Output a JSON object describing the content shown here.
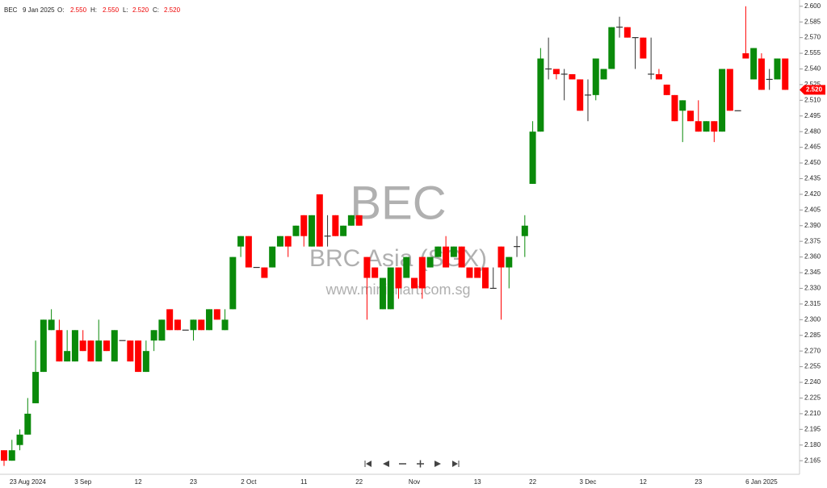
{
  "chart_data": {
    "type": "candlestick",
    "header": {
      "symbol": "BEC",
      "date": "9 Jan 2025",
      "o_label": "O:",
      "o": "2.550",
      "h_label": "H:",
      "h": "2.550",
      "l_label": "L:",
      "l": "2.520",
      "c_label": "C:",
      "c": "2.520"
    },
    "watermark": {
      "code": "BEC",
      "name": "BRC Asia (SGX)",
      "site": "www.minichart.com.sg"
    },
    "last_price": {
      "value": 2.52,
      "label": "2.520"
    },
    "up_color": "#0a8a0a",
    "down_color": "#ff0000",
    "categories": [
      null,
      null,
      null,
      "23 Aug 2024",
      null,
      null,
      null,
      null,
      null,
      null,
      "3 Sep",
      null,
      null,
      null,
      null,
      null,
      null,
      "12",
      null,
      null,
      null,
      null,
      null,
      null,
      "23",
      null,
      null,
      null,
      null,
      null,
      null,
      "2 Oct",
      null,
      null,
      null,
      null,
      null,
      null,
      "11",
      null,
      null,
      null,
      null,
      null,
      null,
      "22",
      null,
      null,
      null,
      null,
      null,
      null,
      "Nov",
      null,
      null,
      null,
      null,
      null,
      null,
      null,
      "13",
      null,
      null,
      null,
      null,
      null,
      null,
      "22",
      null,
      null,
      null,
      null,
      null,
      null,
      "3 Dec",
      null,
      null,
      null,
      null,
      null,
      null,
      "12",
      null,
      null,
      null,
      null,
      null,
      null,
      "23",
      null,
      null,
      null,
      null,
      null,
      null,
      null,
      "6 Jan 2025",
      null,
      null,
      null
    ],
    "open": [
      2.175,
      2.165,
      2.18,
      2.19,
      2.22,
      2.25,
      2.29,
      2.29,
      2.26,
      2.26,
      2.28,
      2.28,
      2.26,
      2.28,
      2.26,
      2.28,
      2.28,
      2.28,
      2.25,
      2.28,
      2.28,
      2.31,
      2.3,
      2.29,
      2.29,
      2.3,
      2.29,
      2.31,
      2.29,
      2.31,
      2.37,
      2.38,
      2.35,
      2.35,
      2.35,
      2.37,
      2.38,
      2.38,
      2.4,
      2.37,
      2.42,
      2.38,
      2.4,
      2.38,
      2.39,
      2.4,
      2.36,
      2.35,
      2.31,
      2.31,
      2.35,
      2.34,
      2.34,
      2.36,
      2.35,
      2.36,
      2.37,
      2.36,
      2.37,
      2.35,
      2.35,
      2.35,
      2.33,
      2.37,
      2.35,
      2.37,
      2.38,
      2.43,
      2.48,
      2.54,
      2.54,
      2.535,
      2.535,
      2.53,
      2.515,
      2.515,
      2.53,
      2.54,
      2.58,
      2.58,
      2.57,
      2.57,
      2.535,
      2.535,
      2.525,
      2.515,
      2.5,
      2.5,
      2.49,
      2.48,
      2.49,
      2.48,
      2.54,
      2.5,
      2.555,
      2.53,
      2.55,
      2.53,
      2.53,
      2.55
    ],
    "high": [
      2.175,
      2.185,
      2.195,
      2.225,
      2.28,
      2.3,
      2.31,
      2.3,
      2.29,
      2.29,
      2.29,
      2.28,
      2.3,
      2.28,
      2.29,
      2.28,
      2.28,
      2.28,
      2.28,
      2.29,
      2.3,
      2.31,
      2.3,
      2.29,
      2.3,
      2.3,
      2.31,
      2.31,
      2.31,
      2.36,
      2.38,
      2.38,
      2.35,
      2.35,
      2.37,
      2.38,
      2.38,
      2.39,
      2.4,
      2.4,
      2.42,
      2.4,
      2.4,
      2.39,
      2.4,
      2.4,
      2.36,
      2.35,
      2.34,
      2.35,
      2.35,
      2.36,
      2.34,
      2.36,
      2.36,
      2.37,
      2.38,
      2.37,
      2.37,
      2.35,
      2.35,
      2.35,
      2.35,
      2.37,
      2.36,
      2.38,
      2.4,
      2.49,
      2.56,
      2.57,
      2.54,
      2.54,
      2.535,
      2.53,
      2.53,
      2.55,
      2.54,
      2.58,
      2.59,
      2.58,
      2.57,
      2.57,
      2.57,
      2.54,
      2.525,
      2.515,
      2.51,
      2.5,
      2.51,
      2.49,
      2.49,
      2.54,
      2.54,
      2.5,
      2.6,
      2.56,
      2.555,
      2.54,
      2.55,
      2.55
    ],
    "low": [
      2.16,
      2.165,
      2.175,
      2.19,
      2.22,
      2.25,
      2.29,
      2.26,
      2.26,
      2.26,
      2.27,
      2.26,
      2.26,
      2.27,
      2.26,
      2.28,
      2.26,
      2.25,
      2.25,
      2.27,
      2.28,
      2.29,
      2.29,
      2.29,
      2.28,
      2.29,
      2.29,
      2.3,
      2.29,
      2.31,
      2.36,
      2.35,
      2.35,
      2.34,
      2.35,
      2.37,
      2.36,
      2.38,
      2.37,
      2.37,
      2.37,
      2.37,
      2.38,
      2.38,
      2.39,
      2.39,
      2.3,
      2.34,
      2.31,
      2.31,
      2.32,
      2.34,
      2.33,
      2.32,
      2.35,
      2.36,
      2.35,
      2.36,
      2.35,
      2.34,
      2.34,
      2.33,
      2.33,
      2.3,
      2.33,
      2.36,
      2.36,
      2.43,
      2.48,
      2.53,
      2.53,
      2.51,
      2.53,
      2.5,
      2.49,
      2.51,
      2.53,
      2.54,
      2.57,
      2.57,
      2.54,
      2.55,
      2.53,
      2.53,
      2.515,
      2.49,
      2.47,
      2.49,
      2.48,
      2.48,
      2.47,
      2.48,
      2.5,
      2.5,
      2.55,
      2.53,
      2.52,
      2.52,
      2.53,
      2.52
    ],
    "close": [
      2.165,
      2.175,
      2.19,
      2.21,
      2.25,
      2.3,
      2.3,
      2.26,
      2.27,
      2.29,
      2.27,
      2.26,
      2.28,
      2.27,
      2.29,
      2.28,
      2.26,
      2.25,
      2.27,
      2.29,
      2.3,
      2.29,
      2.29,
      2.29,
      2.3,
      2.29,
      2.31,
      2.3,
      2.3,
      2.36,
      2.38,
      2.35,
      2.35,
      2.34,
      2.37,
      2.38,
      2.37,
      2.39,
      2.38,
      2.4,
      2.37,
      2.38,
      2.38,
      2.39,
      2.4,
      2.39,
      2.34,
      2.34,
      2.34,
      2.35,
      2.33,
      2.36,
      2.33,
      2.33,
      2.36,
      2.37,
      2.35,
      2.37,
      2.35,
      2.34,
      2.34,
      2.33,
      2.33,
      2.35,
      2.36,
      2.37,
      2.39,
      2.48,
      2.55,
      2.54,
      2.535,
      2.535,
      2.53,
      2.5,
      2.515,
      2.55,
      2.54,
      2.58,
      2.58,
      2.57,
      2.57,
      2.55,
      2.535,
      2.53,
      2.515,
      2.49,
      2.51,
      2.49,
      2.48,
      2.49,
      2.48,
      2.54,
      2.5,
      2.5,
      2.55,
      2.56,
      2.52,
      2.53,
      2.55,
      2.52
    ],
    "ylim": [
      2.152,
      2.606
    ],
    "yticks": [
      {
        "value": 2.165,
        "label": "2.165"
      },
      {
        "value": 2.18,
        "label": "2.180"
      },
      {
        "value": 2.195,
        "label": "2.195"
      },
      {
        "value": 2.21,
        "label": "2.210"
      },
      {
        "value": 2.225,
        "label": "2.225"
      },
      {
        "value": 2.24,
        "label": "2.240"
      },
      {
        "value": 2.255,
        "label": "2.255"
      },
      {
        "value": 2.27,
        "label": "2.270"
      },
      {
        "value": 2.285,
        "label": "2.285"
      },
      {
        "value": 2.3,
        "label": "2.300"
      },
      {
        "value": 2.315,
        "label": "2.315"
      },
      {
        "value": 2.33,
        "label": "2.330"
      },
      {
        "value": 2.345,
        "label": "2.345"
      },
      {
        "value": 2.36,
        "label": "2.360"
      },
      {
        "value": 2.375,
        "label": "2.375"
      },
      {
        "value": 2.39,
        "label": "2.390"
      },
      {
        "value": 2.405,
        "label": "2.405"
      },
      {
        "value": 2.42,
        "label": "2.420"
      },
      {
        "value": 2.435,
        "label": "2.435"
      },
      {
        "value": 2.45,
        "label": "2.450"
      },
      {
        "value": 2.465,
        "label": "2.465"
      },
      {
        "value": 2.48,
        "label": "2.480"
      },
      {
        "value": 2.495,
        "label": "2.495"
      },
      {
        "value": 2.51,
        "label": "2.510"
      },
      {
        "value": 2.525,
        "label": "2.525"
      },
      {
        "value": 2.54,
        "label": "2.540"
      },
      {
        "value": 2.555,
        "label": "2.555"
      },
      {
        "value": 2.57,
        "label": "2.570"
      },
      {
        "value": 2.585,
        "label": "2.585"
      },
      {
        "value": 2.6,
        "label": "2.600"
      }
    ]
  }
}
